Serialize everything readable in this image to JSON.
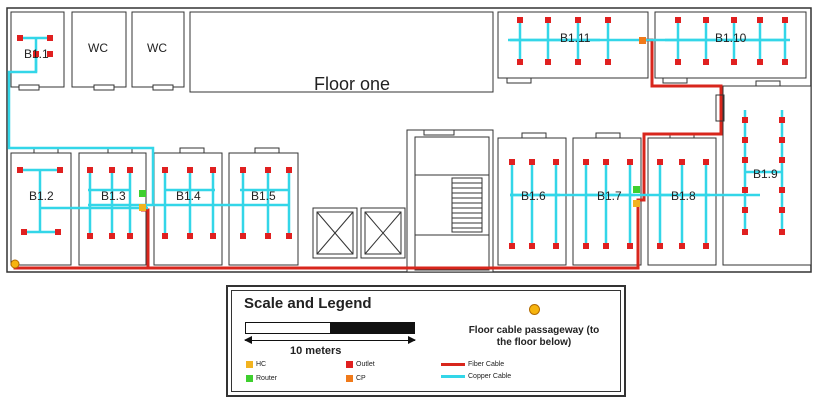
{
  "floor_title": "Floor one",
  "rooms": {
    "b1_1": "B1.1",
    "wc_a": "WC",
    "wc_b": "WC",
    "b1_2": "B1.2",
    "b1_3": "B1.3",
    "b1_4": "B1.4",
    "b1_5": "B1.5",
    "b1_6": "B1.6",
    "b1_7": "B1.7",
    "b1_8": "B1.8",
    "b1_9": "B1.9",
    "b1_10": "B1.10",
    "b1_11": "B1.11"
  },
  "legend": {
    "title": "Scale and Legend",
    "scale_label": "10 meters",
    "passageway_label": "Floor cable passageway (to the floor below)",
    "hc": "HC",
    "router": "Router",
    "outlet": "Outlet",
    "cp": "CP",
    "fiber": "Fiber Cable",
    "copper": "Copper Cable"
  },
  "colors": {
    "copper": "#33d6e8",
    "fiber": "#d8261c",
    "outlet": "#e02020",
    "hc": "#f2b320",
    "router": "#3ecf2e",
    "cp": "#f07a1a",
    "passageway": "#f6b40e"
  }
}
